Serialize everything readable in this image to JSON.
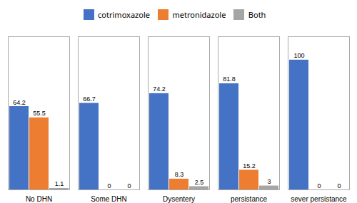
{
  "chart_data": {
    "type": "bar",
    "categories": [
      "No DHN",
      "Some DHN",
      "Dysentery",
      "persistance",
      "sever persistance"
    ],
    "series": [
      {
        "name": "cotrimoxazole",
        "color": "#4472C4",
        "values": [
          64.2,
          66.7,
          74.2,
          81.8,
          100
        ]
      },
      {
        "name": "metronidazole",
        "color": "#ED7D31",
        "values": [
          55.5,
          0,
          8.3,
          15.2,
          0
        ]
      },
      {
        "name": "Both",
        "color": "#A5A5A5",
        "values": [
          1.1,
          0,
          2.5,
          3,
          0
        ]
      }
    ],
    "ylim": [
      0,
      118
    ],
    "yticks": [],
    "tick_labels": "x",
    "data_labels": true,
    "legend": "top"
  }
}
